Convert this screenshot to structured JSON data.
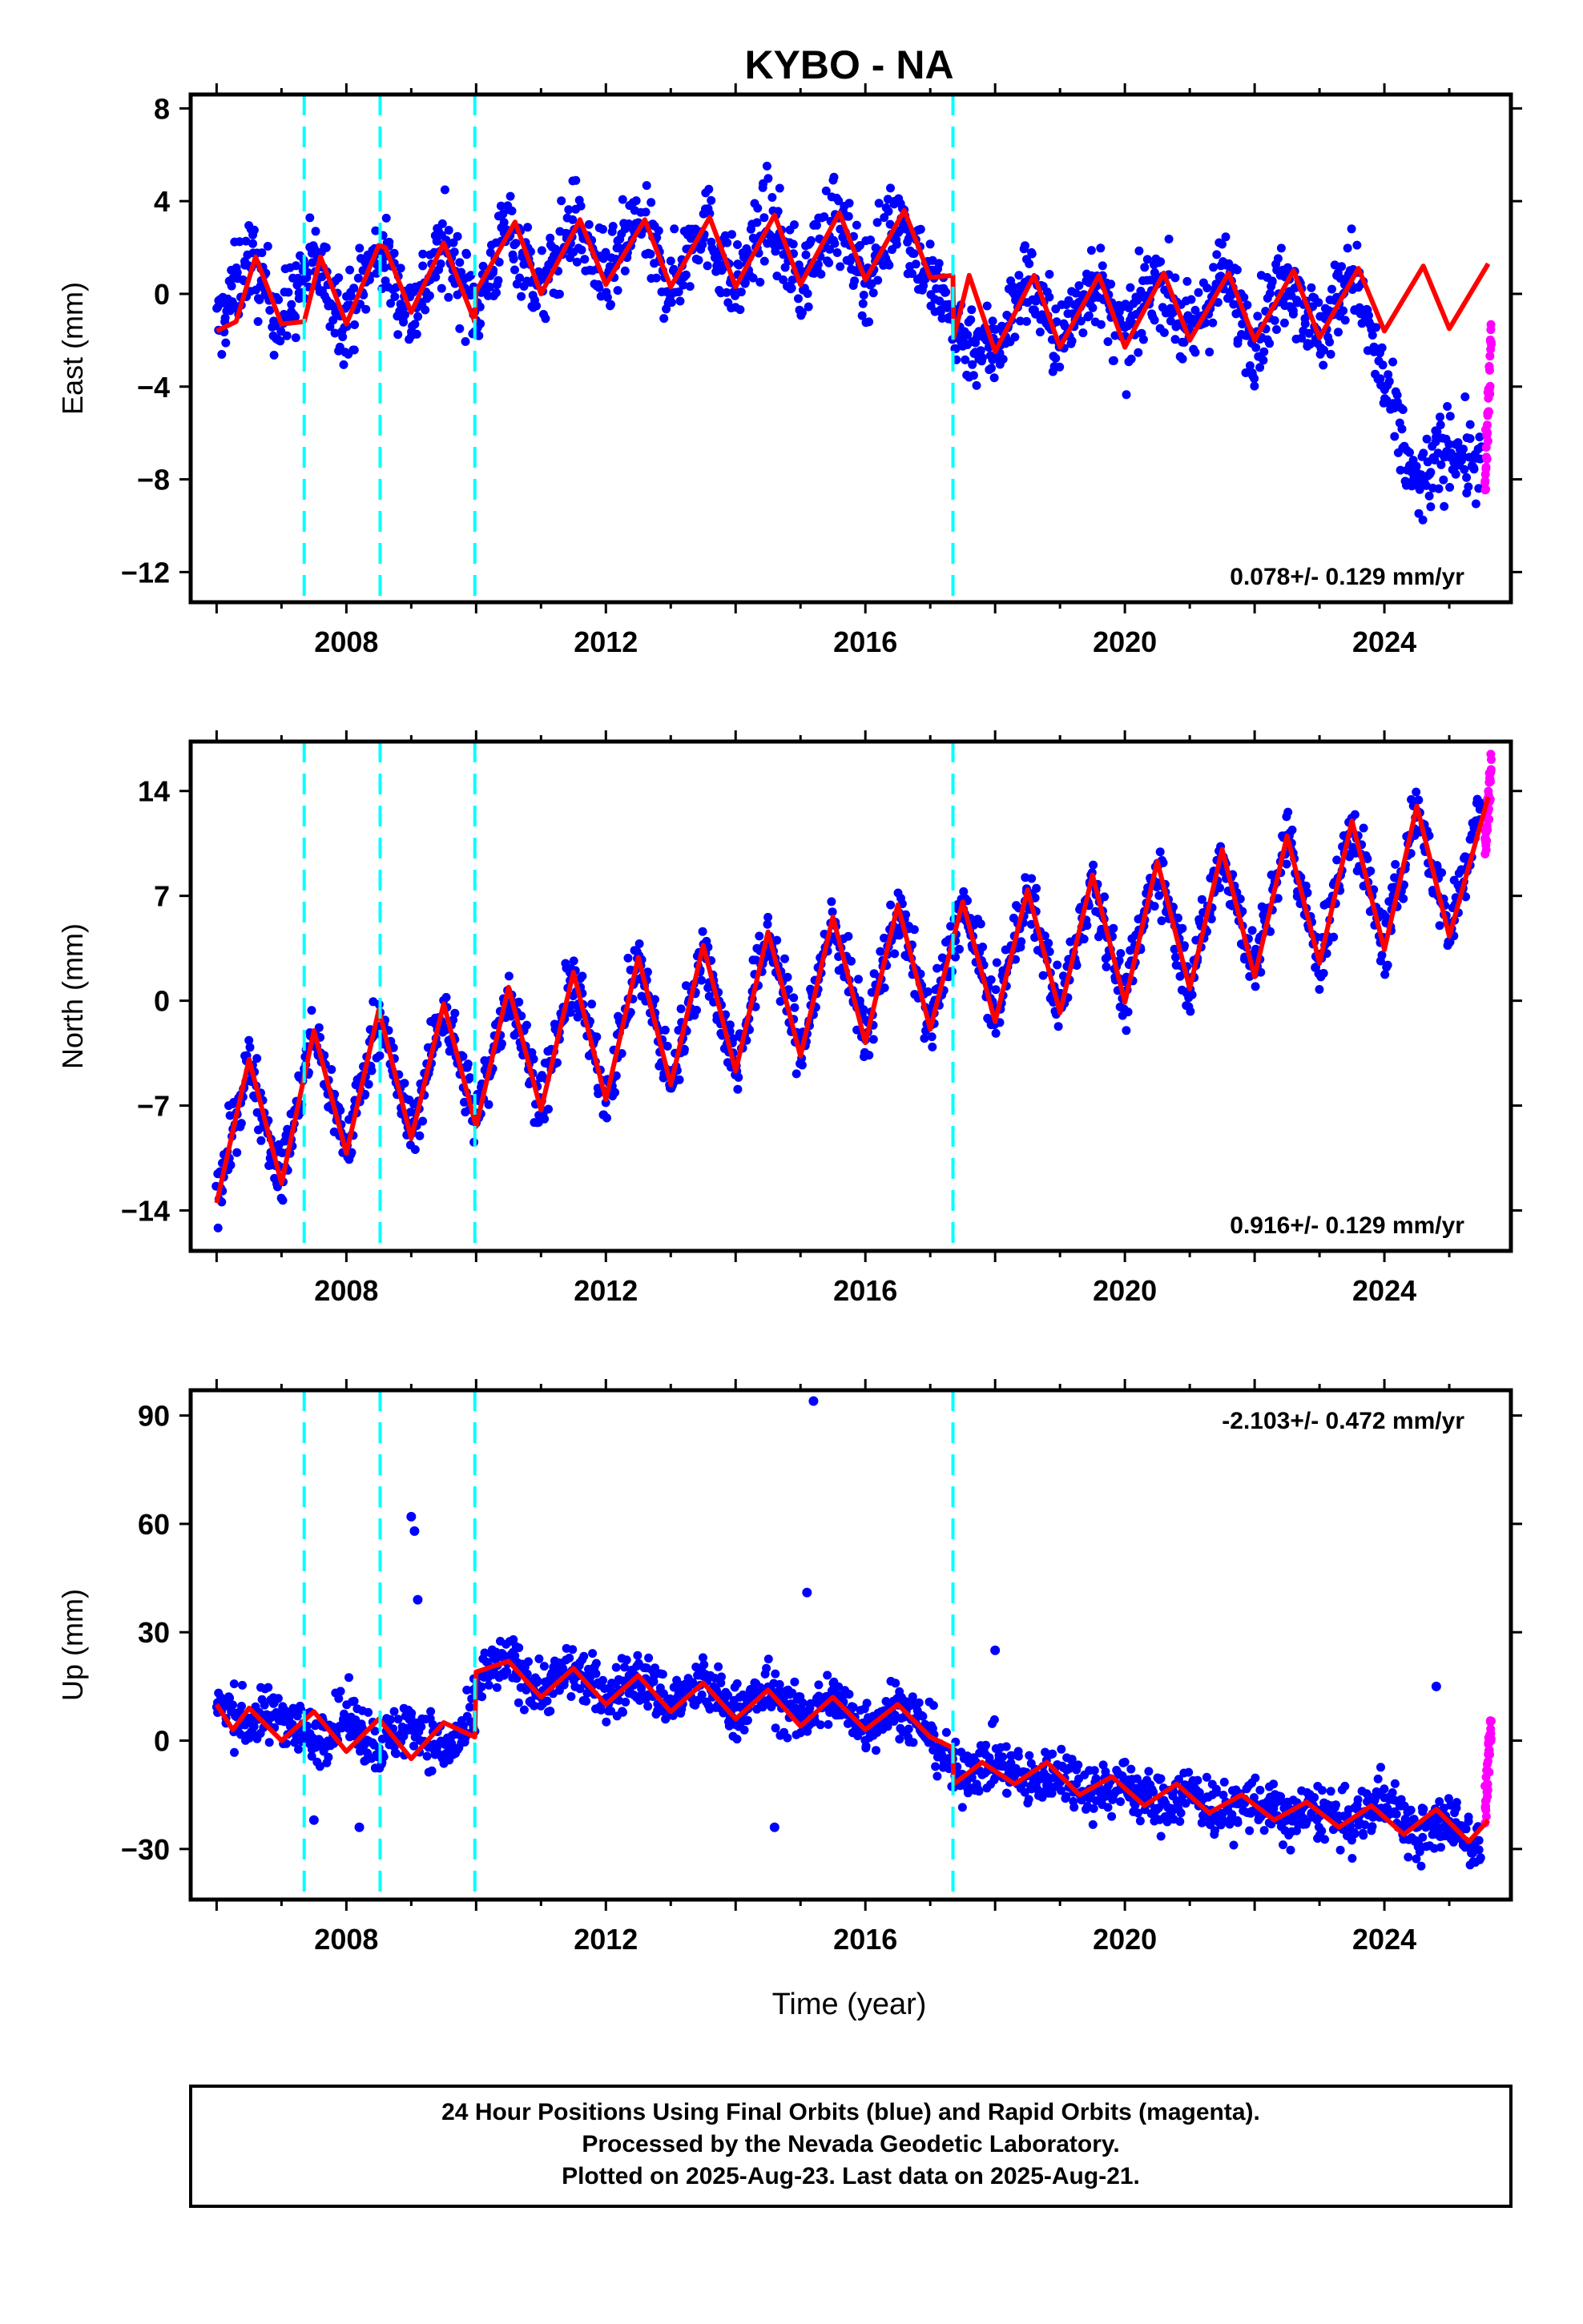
{
  "title": "KYBO - NA",
  "x_axis_label": "Time (year)",
  "footer_lines": [
    "24 Hour Positions Using Final Orbits (blue) and Rapid Orbits (magenta).",
    "Processed by the Nevada Geodetic Laboratory.",
    "Plotted on 2025-Aug-23. Last data on 2025-Aug-21."
  ],
  "colors": {
    "final_orbits": "#0000ff",
    "rapid_orbits": "#ff00ff",
    "model_fit": "#ff0000",
    "step_markers": "#00ffff",
    "frame": "#000000"
  },
  "chart_data": [
    {
      "type": "scatter",
      "component": "east",
      "ylabel": "East (mm)",
      "ylim": [
        -13.3,
        8.6
      ],
      "yticks": [
        -12,
        -8,
        -4,
        0,
        4,
        8
      ],
      "ytick_labels": [
        "−12",
        "−8",
        "−4",
        "0",
        "4",
        "8"
      ],
      "xlim": [
        2005.6,
        2025.95
      ],
      "xticks": [
        2008,
        2012,
        2016,
        2020,
        2024
      ],
      "step_markers_x": [
        2007.35,
        2008.52,
        2009.98,
        2017.35
      ],
      "rate_text": "0.078+/- 0.129 mm/yr",
      "rate_position": "bottom-right",
      "series": [
        {
          "name": "Final Orbits",
          "x": [
            2006.0,
            2006.5,
            2007.0,
            2007.5,
            2008.0,
            2008.5,
            2009.0,
            2009.5,
            2010.0,
            2010.5,
            2011.0,
            2011.5,
            2012.0,
            2012.5,
            2013.0,
            2013.5,
            2014.0,
            2014.5,
            2015.0,
            2015.5,
            2016.0,
            2016.5,
            2017.0,
            2017.5,
            2018.0,
            2018.5,
            2019.0,
            2019.5,
            2020.0,
            2020.5,
            2021.0,
            2021.5,
            2022.0,
            2022.5,
            2023.0,
            2023.5,
            2024.0,
            2024.5,
            2025.0,
            2025.5
          ],
          "y": [
            -1.6,
            1.6,
            -1.2,
            1.5,
            -1.2,
            2.0,
            -0.9,
            2.2,
            -0.7,
            3.0,
            0.0,
            3.2,
            0.4,
            3.2,
            0.2,
            3.3,
            0.2,
            3.4,
            0.4,
            3.5,
            0.6,
            3.6,
            0.6,
            -1.9,
            -2.4,
            0.8,
            -2.2,
            0.8,
            -2.1,
            0.9,
            -2.0,
            0.9,
            -2.0,
            1.0,
            -1.9,
            1.1,
            -4.0,
            -8.5,
            -6.5,
            -7.5
          ],
          "spread": 1.3
        },
        {
          "name": "Rapid Orbits",
          "x": [
            2025.55,
            2025.6,
            2025.65
          ],
          "y": [
            -1.5,
            -6.0,
            -8.5
          ]
        }
      ],
      "model_fit_anchors": {
        "x": [
          2006.0,
          2006.3,
          2006.6,
          2007.0,
          2007.35,
          2007.6,
          2008.0,
          2008.5,
          2008.6,
          2009.0,
          2009.5,
          2009.98,
          2010.0,
          2010.6,
          2011.0,
          2011.6,
          2012.0,
          2012.6,
          2013.0,
          2013.6,
          2014.0,
          2014.6,
          2015.0,
          2015.6,
          2016.0,
          2016.6,
          2017.0,
          2017.35,
          2017.36,
          2017.6,
          2018.0,
          2018.6,
          2019.0,
          2019.6,
          2020.0,
          2020.6,
          2021.0,
          2021.6,
          2022.0,
          2022.6,
          2023.0,
          2023.6,
          2024.0,
          2024.6,
          2025.0,
          2025.6
        ],
        "y": [
          -1.6,
          -1.2,
          1.6,
          -1.3,
          -1.2,
          1.6,
          -1.3,
          2.1,
          2.0,
          -0.8,
          2.2,
          -1.2,
          0.1,
          3.1,
          0.0,
          3.2,
          0.4,
          3.2,
          0.3,
          3.3,
          0.3,
          3.4,
          0.4,
          3.5,
          0.6,
          3.6,
          0.7,
          0.8,
          -1.9,
          0.8,
          -2.5,
          0.8,
          -2.3,
          0.8,
          -2.3,
          0.9,
          -2.0,
          0.9,
          -2.0,
          1.0,
          -1.9,
          1.1,
          -1.6,
          1.2,
          -1.5,
          1.3
        ]
      }
    },
    {
      "type": "scatter",
      "component": "north",
      "ylabel": "North (mm)",
      "ylim": [
        -16.7,
        17.3
      ],
      "yticks": [
        -14,
        -7,
        0,
        7,
        14
      ],
      "ytick_labels": [
        "−14",
        "−7",
        "0",
        "7",
        "14"
      ],
      "xlim": [
        2005.6,
        2025.95
      ],
      "xticks": [
        2008,
        2012,
        2016,
        2020,
        2024
      ],
      "step_markers_x": [
        2007.35,
        2008.52,
        2009.98,
        2017.35
      ],
      "rate_text": "0.916+/- 0.129 mm/yr",
      "rate_position": "bottom-right",
      "series": [
        {
          "name": "Final Orbits",
          "x": [
            2006.0,
            2006.5,
            2007.0,
            2007.5,
            2008.0,
            2008.5,
            2009.0,
            2009.5,
            2010.0,
            2010.5,
            2011.0,
            2011.5,
            2012.0,
            2012.5,
            2013.0,
            2013.5,
            2014.0,
            2014.5,
            2015.0,
            2015.5,
            2016.0,
            2016.5,
            2017.0,
            2017.5,
            2018.0,
            2018.5,
            2019.0,
            2019.5,
            2020.0,
            2020.5,
            2021.0,
            2021.5,
            2022.0,
            2022.5,
            2023.0,
            2023.5,
            2024.0,
            2024.5,
            2025.0,
            2025.5
          ],
          "y": [
            -13.5,
            -4.0,
            -12.0,
            -2.0,
            -10.0,
            -0.8,
            -9.0,
            -0.3,
            -8.0,
            0.8,
            -7.0,
            1.8,
            -6.5,
            2.8,
            -5.5,
            3.5,
            -4.5,
            4.6,
            -3.5,
            5.5,
            -2.5,
            6.3,
            -1.8,
            6.5,
            -1.0,
            7.3,
            -0.5,
            8.3,
            0.0,
            9.2,
            1.0,
            10.0,
            2.0,
            11.0,
            2.5,
            12.0,
            3.5,
            13.0,
            4.5,
            13.5
          ],
          "spread": 1.5
        },
        {
          "name": "Rapid Orbits",
          "x": [
            2025.55,
            2025.6,
            2025.65
          ],
          "y": [
            10.0,
            13.0,
            16.0
          ]
        }
      ],
      "model_fit_anchors": {
        "x": [
          2006.0,
          2006.5,
          2007.0,
          2007.5,
          2008.0,
          2008.5,
          2009.0,
          2009.5,
          2010.0,
          2010.5,
          2011.0,
          2011.5,
          2012.0,
          2012.5,
          2013.0,
          2013.5,
          2014.0,
          2014.5,
          2015.0,
          2015.5,
          2016.0,
          2016.5,
          2017.0,
          2017.5,
          2018.0,
          2018.5,
          2019.0,
          2019.5,
          2020.0,
          2020.5,
          2021.0,
          2021.5,
          2022.0,
          2022.5,
          2023.0,
          2023.5,
          2024.0,
          2024.5,
          2025.0,
          2025.6
        ],
        "y": [
          -13.5,
          -3.9,
          -12.2,
          -2.0,
          -10.2,
          -0.6,
          -9.2,
          -0.2,
          -8.4,
          0.9,
          -7.3,
          1.9,
          -6.6,
          2.9,
          -5.6,
          3.7,
          -4.7,
          4.6,
          -3.7,
          5.6,
          -2.8,
          6.4,
          -1.9,
          6.6,
          -1.4,
          7.4,
          -0.8,
          8.4,
          -0.1,
          9.3,
          0.8,
          10.1,
          1.6,
          11.0,
          2.5,
          12.0,
          3.4,
          13.0,
          4.3,
          13.6
        ]
      }
    },
    {
      "type": "scatter",
      "component": "up",
      "ylabel": "Up (mm)",
      "ylim": [
        -44,
        97
      ],
      "yticks": [
        -30,
        0,
        30,
        60,
        90
      ],
      "ytick_labels": [
        "−30",
        "0",
        "30",
        "60",
        "90"
      ],
      "xlim": [
        2005.6,
        2025.95
      ],
      "xticks": [
        2008,
        2012,
        2016,
        2020,
        2024
      ],
      "step_markers_x": [
        2007.35,
        2008.52,
        2009.98,
        2017.35
      ],
      "rate_text": "-2.103+/- 0.472 mm/yr",
      "rate_position": "top-right",
      "series": [
        {
          "name": "Final Orbits",
          "x": [
            2006.0,
            2006.5,
            2007.0,
            2007.5,
            2008.0,
            2008.5,
            2009.0,
            2009.5,
            2009.9,
            2010.1,
            2010.5,
            2011.0,
            2011.5,
            2012.0,
            2012.5,
            2013.0,
            2013.5,
            2014.0,
            2014.5,
            2015.0,
            2015.5,
            2016.0,
            2016.5,
            2017.0,
            2017.4,
            2018.0,
            2018.5,
            2019.0,
            2019.5,
            2020.0,
            2020.5,
            2021.0,
            2021.5,
            2022.0,
            2022.5,
            2023.0,
            2023.5,
            2024.0,
            2024.5,
            2025.0,
            2025.5
          ],
          "y": [
            10,
            5,
            8,
            0,
            7,
            -2,
            5,
            -3,
            3,
            18,
            22,
            14,
            20,
            12,
            18,
            10,
            16,
            8,
            14,
            6,
            12,
            4,
            10,
            2,
            -10,
            -5,
            -12,
            -8,
            -14,
            -12,
            -18,
            -14,
            -20,
            -17,
            -22,
            -19,
            -24,
            -15,
            -27,
            -22,
            -30
          ],
          "spread": 5.5
        },
        {
          "name": "Rapid Orbits",
          "x": [
            2025.55,
            2025.6,
            2025.65
          ],
          "y": [
            -20,
            -5,
            5
          ]
        }
      ],
      "outliers": {
        "x": [
          2009.0,
          2009.05,
          2009.1,
          2015.2,
          2015.1,
          2007.5,
          2008.2,
          2014.6,
          2018.0,
          2024.8
        ],
        "y": [
          62,
          58,
          39,
          94,
          41,
          -22,
          -24,
          -24,
          25,
          15
        ]
      },
      "model_fit_anchors": {
        "x": [
          2006.0,
          2006.25,
          2006.5,
          2007.0,
          2007.5,
          2008.0,
          2008.5,
          2009.0,
          2009.5,
          2009.98,
          2010.0,
          2010.5,
          2011.0,
          2011.5,
          2012.0,
          2012.5,
          2013.0,
          2013.5,
          2014.0,
          2014.5,
          2015.0,
          2015.5,
          2016.0,
          2016.5,
          2017.0,
          2017.35,
          2017.36,
          2017.8,
          2018.3,
          2018.8,
          2019.3,
          2019.8,
          2020.3,
          2020.8,
          2021.3,
          2021.8,
          2022.3,
          2022.8,
          2023.3,
          2023.8,
          2024.3,
          2024.8,
          2025.3,
          2025.6
        ],
        "y": [
          10,
          3,
          9,
          0,
          8,
          -3,
          6,
          -5,
          5,
          1,
          19,
          22,
          12,
          20,
          10,
          18,
          8,
          16,
          6,
          14,
          4,
          12,
          3,
          10,
          1,
          -2,
          -12,
          -6,
          -12,
          -6,
          -15,
          -10,
          -18,
          -12,
          -20,
          -15,
          -22,
          -17,
          -24,
          -18,
          -26,
          -19,
          -28,
          -22
        ]
      }
    }
  ]
}
